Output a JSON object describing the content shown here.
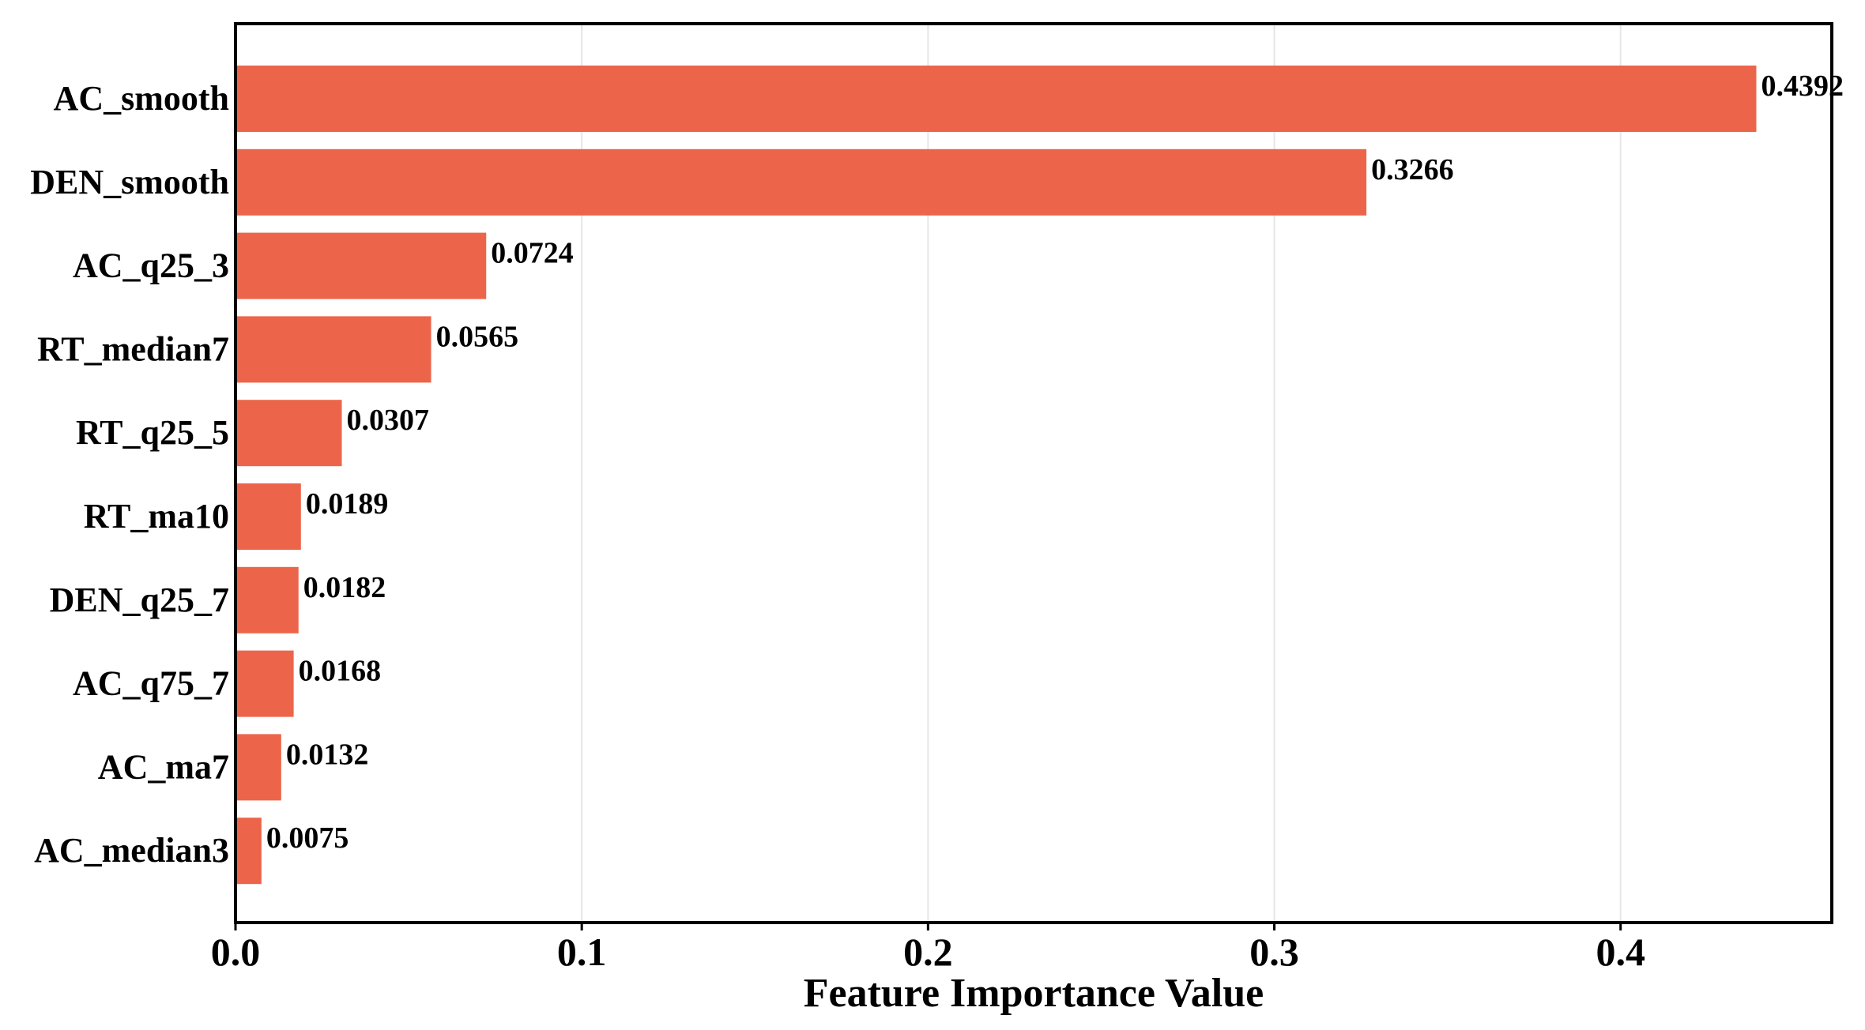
{
  "chart_data": {
    "type": "bar",
    "orientation": "horizontal",
    "categories": [
      "AC_smooth",
      "DEN_smooth",
      "AC_q25_3",
      "RT_median7",
      "RT_q25_5",
      "RT_ma10",
      "DEN_q25_7",
      "AC_q75_7",
      "AC_ma7",
      "AC_median3"
    ],
    "values": [
      0.4392,
      0.3266,
      0.0724,
      0.0565,
      0.0307,
      0.0189,
      0.0182,
      0.0168,
      0.0132,
      0.0075
    ],
    "value_labels": [
      "0.4392",
      "0.3266",
      "0.0724",
      "0.0565",
      "0.0307",
      "0.0189",
      "0.0182",
      "0.0168",
      "0.0132",
      "0.0075"
    ],
    "xticks": [
      0.0,
      0.1,
      0.2,
      0.3,
      0.4
    ],
    "xtick_labels": [
      "0.0",
      "0.1",
      "0.2",
      "0.3",
      "0.4"
    ],
    "xlim": [
      0.0,
      0.461
    ],
    "xlabel": "Feature Importance Value",
    "ylabel": "",
    "title": "",
    "grid": "vertical",
    "bar_color": "#ec654a",
    "grid_color": "#e6e6e6"
  }
}
